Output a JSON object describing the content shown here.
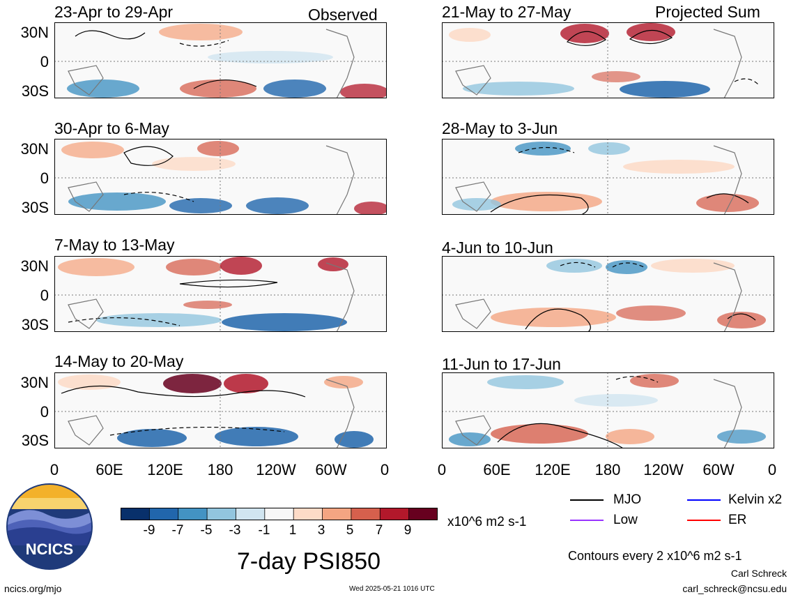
{
  "headers": {
    "observed": "Observed",
    "projected": "Projected Sum"
  },
  "lat_labels": [
    "30N",
    "0",
    "30S"
  ],
  "lon_labels": [
    "0",
    "60E",
    "120E",
    "180",
    "120W",
    "60W",
    "0"
  ],
  "panels": [
    {
      "label": "23-Apr to 29-Apr",
      "column": "observed"
    },
    {
      "label": "30-Apr to 6-May",
      "column": "observed"
    },
    {
      "label": "7-May to 13-May",
      "column": "observed"
    },
    {
      "label": "14-May to 20-May",
      "column": "observed"
    },
    {
      "label": "21-May to 27-May",
      "column": "projected"
    },
    {
      "label": "28-May to 3-Jun",
      "column": "projected"
    },
    {
      "label": "4-Jun to 10-Jun",
      "column": "projected"
    },
    {
      "label": "11-Jun to 17-Jun",
      "column": "projected"
    }
  ],
  "colorbar": {
    "colors": [
      "#08306b",
      "#2166ac",
      "#4393c3",
      "#92c5de",
      "#d1e5f0",
      "#f7f7f7",
      "#fddbc7",
      "#f4a582",
      "#d6604d",
      "#b2182b",
      "#67001f"
    ],
    "labels": [
      "-9",
      "-7",
      "-5",
      "-3",
      "-1",
      "1",
      "3",
      "5",
      "7",
      "9"
    ],
    "units": "x10^6 m2 s-1"
  },
  "legend": [
    {
      "label": "MJO",
      "color": "#000000"
    },
    {
      "label": "Kelvin x2",
      "color": "#0000ff"
    },
    {
      "label": "Low",
      "color": "#9933ff"
    },
    {
      "label": "ER",
      "color": "#ff0000"
    }
  ],
  "title": "7-day PSI850",
  "contour_note": "Contours every 2 x10^6 m2 s-1",
  "url": "ncics.org/mjo",
  "timestamp": "Wed 2025-05-21 1016 UTC",
  "author": "Carl Schreck",
  "email": "carl_schreck@ncsu.edu",
  "logo_text": "NCICS"
}
